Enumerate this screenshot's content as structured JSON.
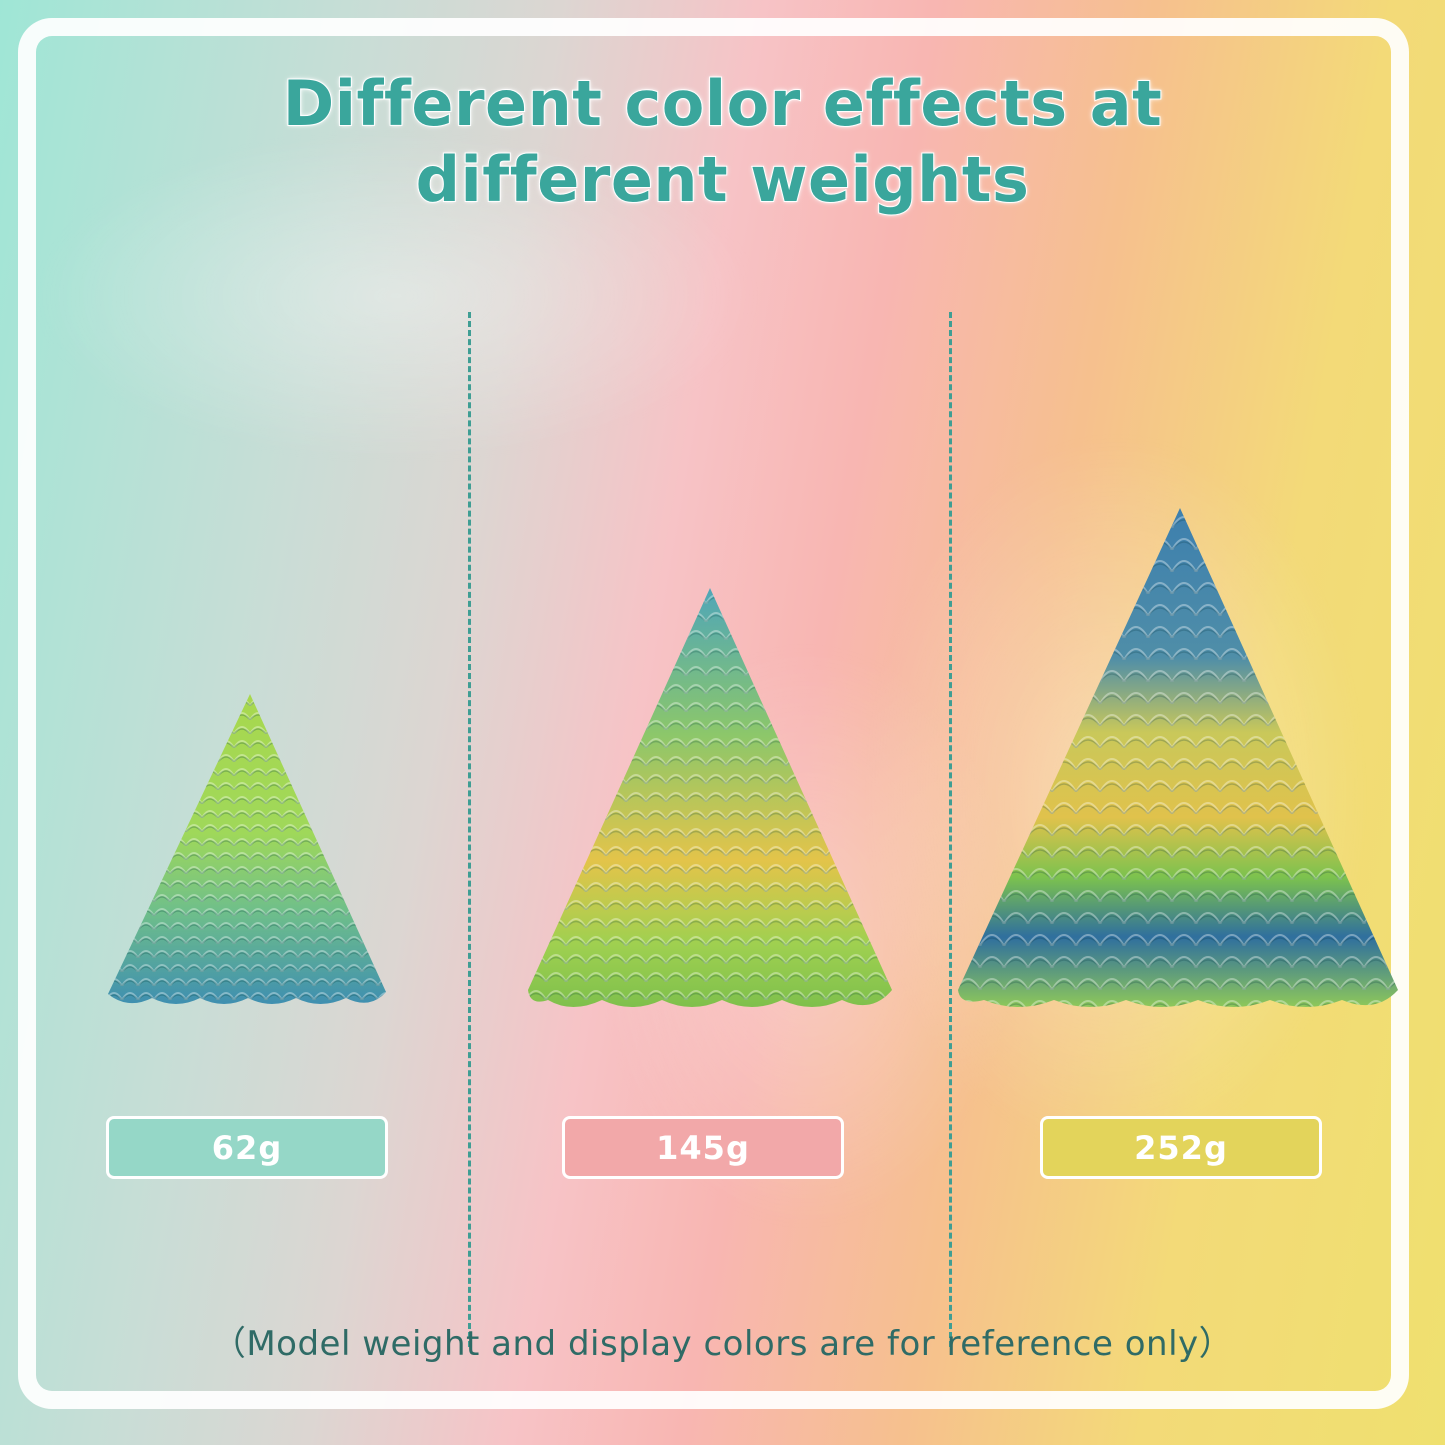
{
  "title": {
    "line1": "Different color effects at",
    "line2": "different weights"
  },
  "models": [
    {
      "weight_label": "62g",
      "badge_color": "#95d7c7",
      "cone_colors": [
        "#a8d84e",
        "#8fd05c",
        "#6fbf8a",
        "#3f8fb0"
      ]
    },
    {
      "weight_label": "145g",
      "badge_color": "#f2a8a9",
      "cone_colors": [
        "#4fa6b8",
        "#8cc76a",
        "#e3c44a",
        "#7fc04c"
      ]
    },
    {
      "weight_label": "252g",
      "badge_color": "#e3d45b",
      "cone_colors": [
        "#3d7fae",
        "#e0c24c",
        "#7cc24e",
        "#2f6f9e"
      ]
    }
  ],
  "footnote": "（Model weight and display colors are for reference only）",
  "colors": {
    "title_text": "#3aa69c",
    "divider": "#3f9e94",
    "footnote_text": "#2f6b66"
  }
}
